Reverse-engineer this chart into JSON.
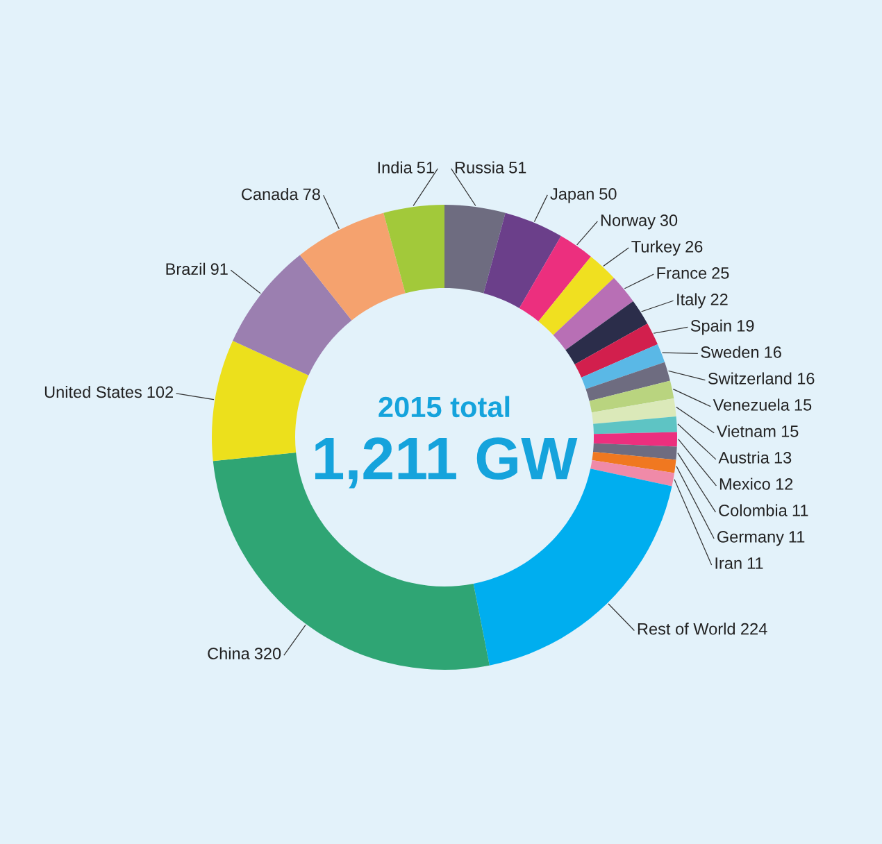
{
  "chart_data": {
    "type": "donut",
    "categories": [
      "Russia",
      "Japan",
      "Norway",
      "Turkey",
      "France",
      "Italy",
      "Spain",
      "Sweden",
      "Switzerland",
      "Venezuela",
      "Vietnam",
      "Austria",
      "Mexico",
      "Colombia",
      "Germany",
      "Iran",
      "Rest of World",
      "China",
      "United States",
      "Brazil",
      "Canada",
      "India"
    ],
    "values": [
      51,
      50,
      30,
      26,
      25,
      22,
      19,
      16,
      16,
      15,
      15,
      13,
      12,
      11,
      11,
      11,
      224,
      320,
      102,
      91,
      78,
      51
    ],
    "colors": [
      "#6e6c80",
      "#6b3f8a",
      "#ec2f7e",
      "#f0e020",
      "#b86fb5",
      "#2b2d4a",
      "#d21f4d",
      "#5ab8e6",
      "#6e6c80",
      "#b9d47f",
      "#dbe9b9",
      "#5ec4c4",
      "#ec2f7e",
      "#6e6c80",
      "#f07820",
      "#f08aa8",
      "#00aeef",
      "#2fa574",
      "#ece01c",
      "#9b7fb0",
      "#f5a26e",
      "#a2c93a"
    ],
    "data_labels": true,
    "legend": false,
    "annotations": [
      "2015 total",
      "1,211 GW"
    ]
  }
}
